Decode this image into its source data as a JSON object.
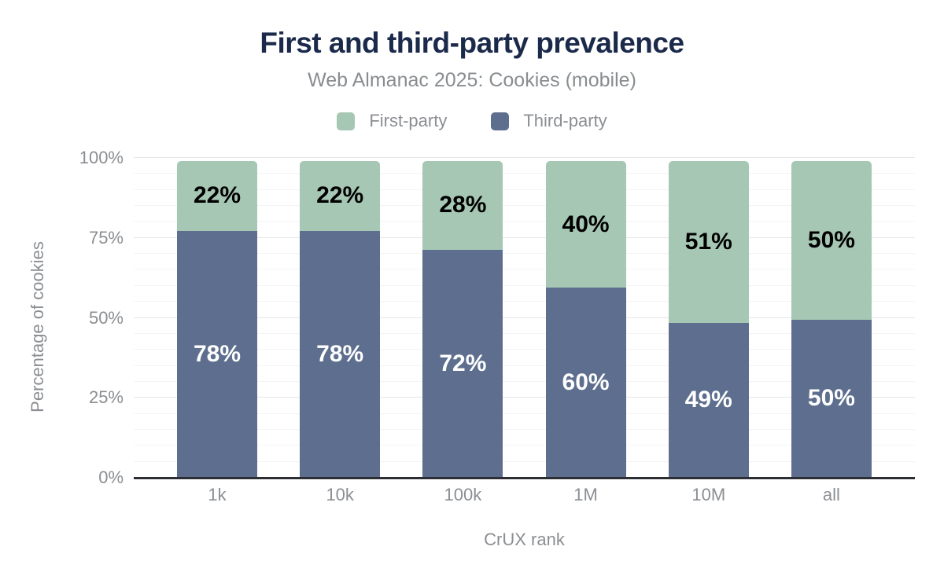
{
  "header": {
    "title": "First and third-party prevalence",
    "subtitle": "Web Almanac 2025: Cookies (mobile)"
  },
  "legend": {
    "position": "top",
    "items": [
      {
        "label": "First-party",
        "color": "#a6c7b4"
      },
      {
        "label": "Third-party",
        "color": "#5d6e8e"
      }
    ]
  },
  "chart_data": {
    "type": "bar",
    "stacked": true,
    "title": "First and third-party prevalence",
    "subtitle": "Web Almanac 2025: Cookies (mobile)",
    "categories": [
      "1k",
      "10k",
      "100k",
      "1M",
      "10M",
      "all"
    ],
    "series": [
      {
        "name": "Third-party",
        "values": [
          78,
          78,
          72,
          60,
          49,
          50
        ],
        "color": "#5d6e8e",
        "label_color": "#ffffff"
      },
      {
        "name": "First-party",
        "values": [
          22,
          22,
          28,
          40,
          51,
          50
        ],
        "color": "#a6c7b4",
        "label_color": "#000000"
      }
    ],
    "value_suffix": "%",
    "xlabel": "CrUX rank",
    "ylabel": "Percentage of cookies",
    "ylim": [
      0,
      100
    ],
    "yticks": [
      0,
      25,
      50,
      75,
      100
    ],
    "ytick_suffix": "%",
    "grid": {
      "horizontal": true,
      "minor_step": 5,
      "major_step": 25
    },
    "legend_position": "top",
    "bar_labels": "value shown centered on every segment"
  },
  "colors": {
    "title_text": "#1b2a4a",
    "muted_text": "#8b8e92",
    "axis_line": "#2c2e33",
    "grid_major": "#e4e6e8",
    "grid_minor": "#f3f4f5",
    "background": "#ffffff"
  }
}
